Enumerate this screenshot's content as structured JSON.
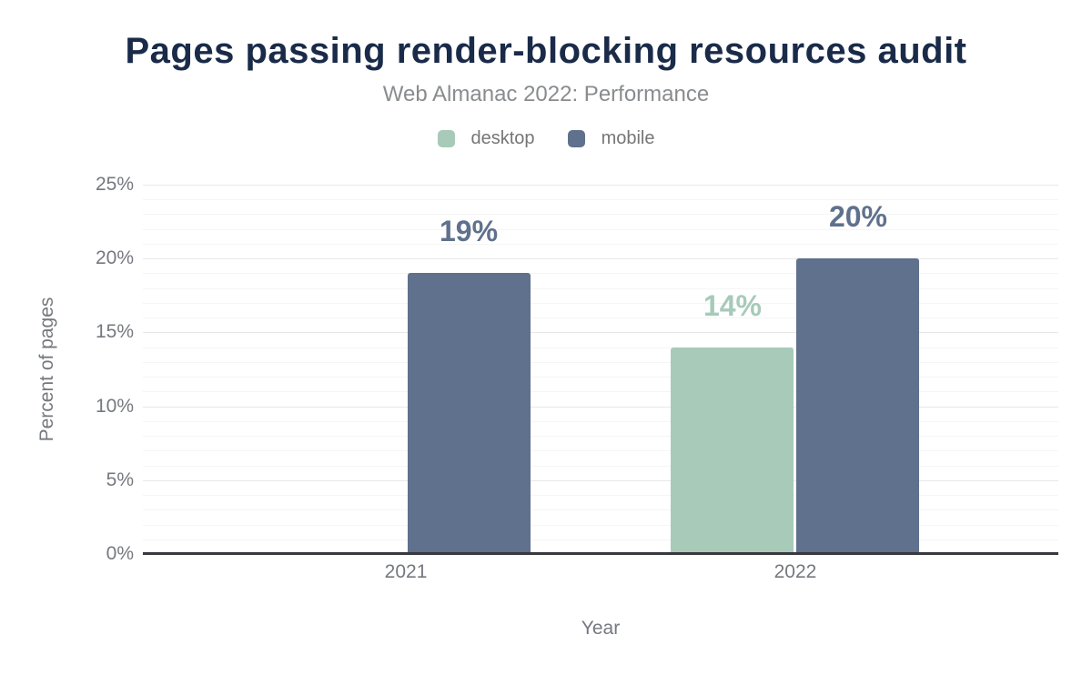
{
  "chart_data": {
    "type": "bar",
    "title": "Pages passing render-blocking resources audit",
    "subtitle": "Web Almanac 2022: Performance",
    "xlabel": "Year",
    "ylabel": "Percent of pages",
    "categories": [
      "2021",
      "2022"
    ],
    "series": [
      {
        "name": "desktop",
        "color": "#a7cab9",
        "values": [
          null,
          14
        ],
        "data_labels": [
          null,
          "14%"
        ]
      },
      {
        "name": "mobile",
        "color": "#5f718c",
        "values": [
          19,
          20
        ],
        "data_labels": [
          "19%",
          "20%"
        ]
      }
    ],
    "ylim": [
      0,
      25
    ],
    "yticks": [
      0,
      5,
      10,
      15,
      20,
      25
    ],
    "ytick_labels": [
      "0%",
      "5%",
      "10%",
      "15%",
      "20%",
      "25%"
    ],
    "minor_grid_step": 1,
    "major_grid_step": 5,
    "grid": true,
    "legend_position": "top"
  },
  "styles": {
    "background": "#ffffff",
    "title_color": "#1a2b49",
    "subtitle_color": "#898c8e",
    "legend_text_color": "#767676",
    "axis_text_color": "#75787e",
    "axis_line_color": "#38393d",
    "grid_major_color": "#e7e7e7",
    "grid_minor_color": "#f5f5f5"
  }
}
